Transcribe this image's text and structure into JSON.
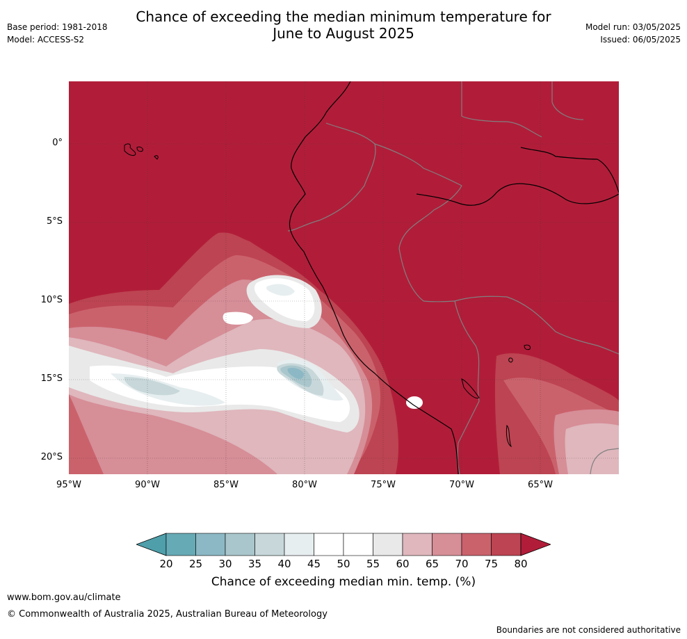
{
  "title_line1": "Chance of exceeding the median minimum temperature for",
  "title_line2": "June to August 2025",
  "left_meta": {
    "base_period": "Base period: 1981-2018",
    "model": "Model: ACCESS-S2"
  },
  "right_meta": {
    "model_run": "Model run: 03/05/2025",
    "issued": "Issued: 06/05/2025"
  },
  "map": {
    "lat_labels": [
      "0°",
      "5°S",
      "10°S",
      "15°S",
      "20°S"
    ],
    "lon_labels": [
      "95°W",
      "90°W",
      "85°W",
      "80°W",
      "75°W",
      "70°W",
      "65°W"
    ],
    "background_color": "#b11d39",
    "coast_color": "#000000",
    "border_color": "#808080"
  },
  "colorbar": {
    "ticks": [
      "20",
      "25",
      "30",
      "35",
      "40",
      "45",
      "50",
      "55",
      "60",
      "65",
      "70",
      "75",
      "80"
    ],
    "colors": [
      "#66aab5",
      "#8bb8c4",
      "#a9c6cc",
      "#c8d8da",
      "#e7eef0",
      "#ffffff",
      "#ffffff",
      "#e9e9e9",
      "#dfb7bd",
      "#d68e97",
      "#ca626c",
      "#bd4452"
    ],
    "low_extend_color": "#4e9faa",
    "high_extend_color": "#b11d39",
    "label": "Chance of exceeding median min. temp. (%)"
  },
  "footer": {
    "url": "www.bom.gov.au/climate",
    "copyright": "© Commonwealth of Australia 2025, Australian Bureau of Meteorology",
    "disclaimer": "Boundaries are not considered authoritative"
  }
}
